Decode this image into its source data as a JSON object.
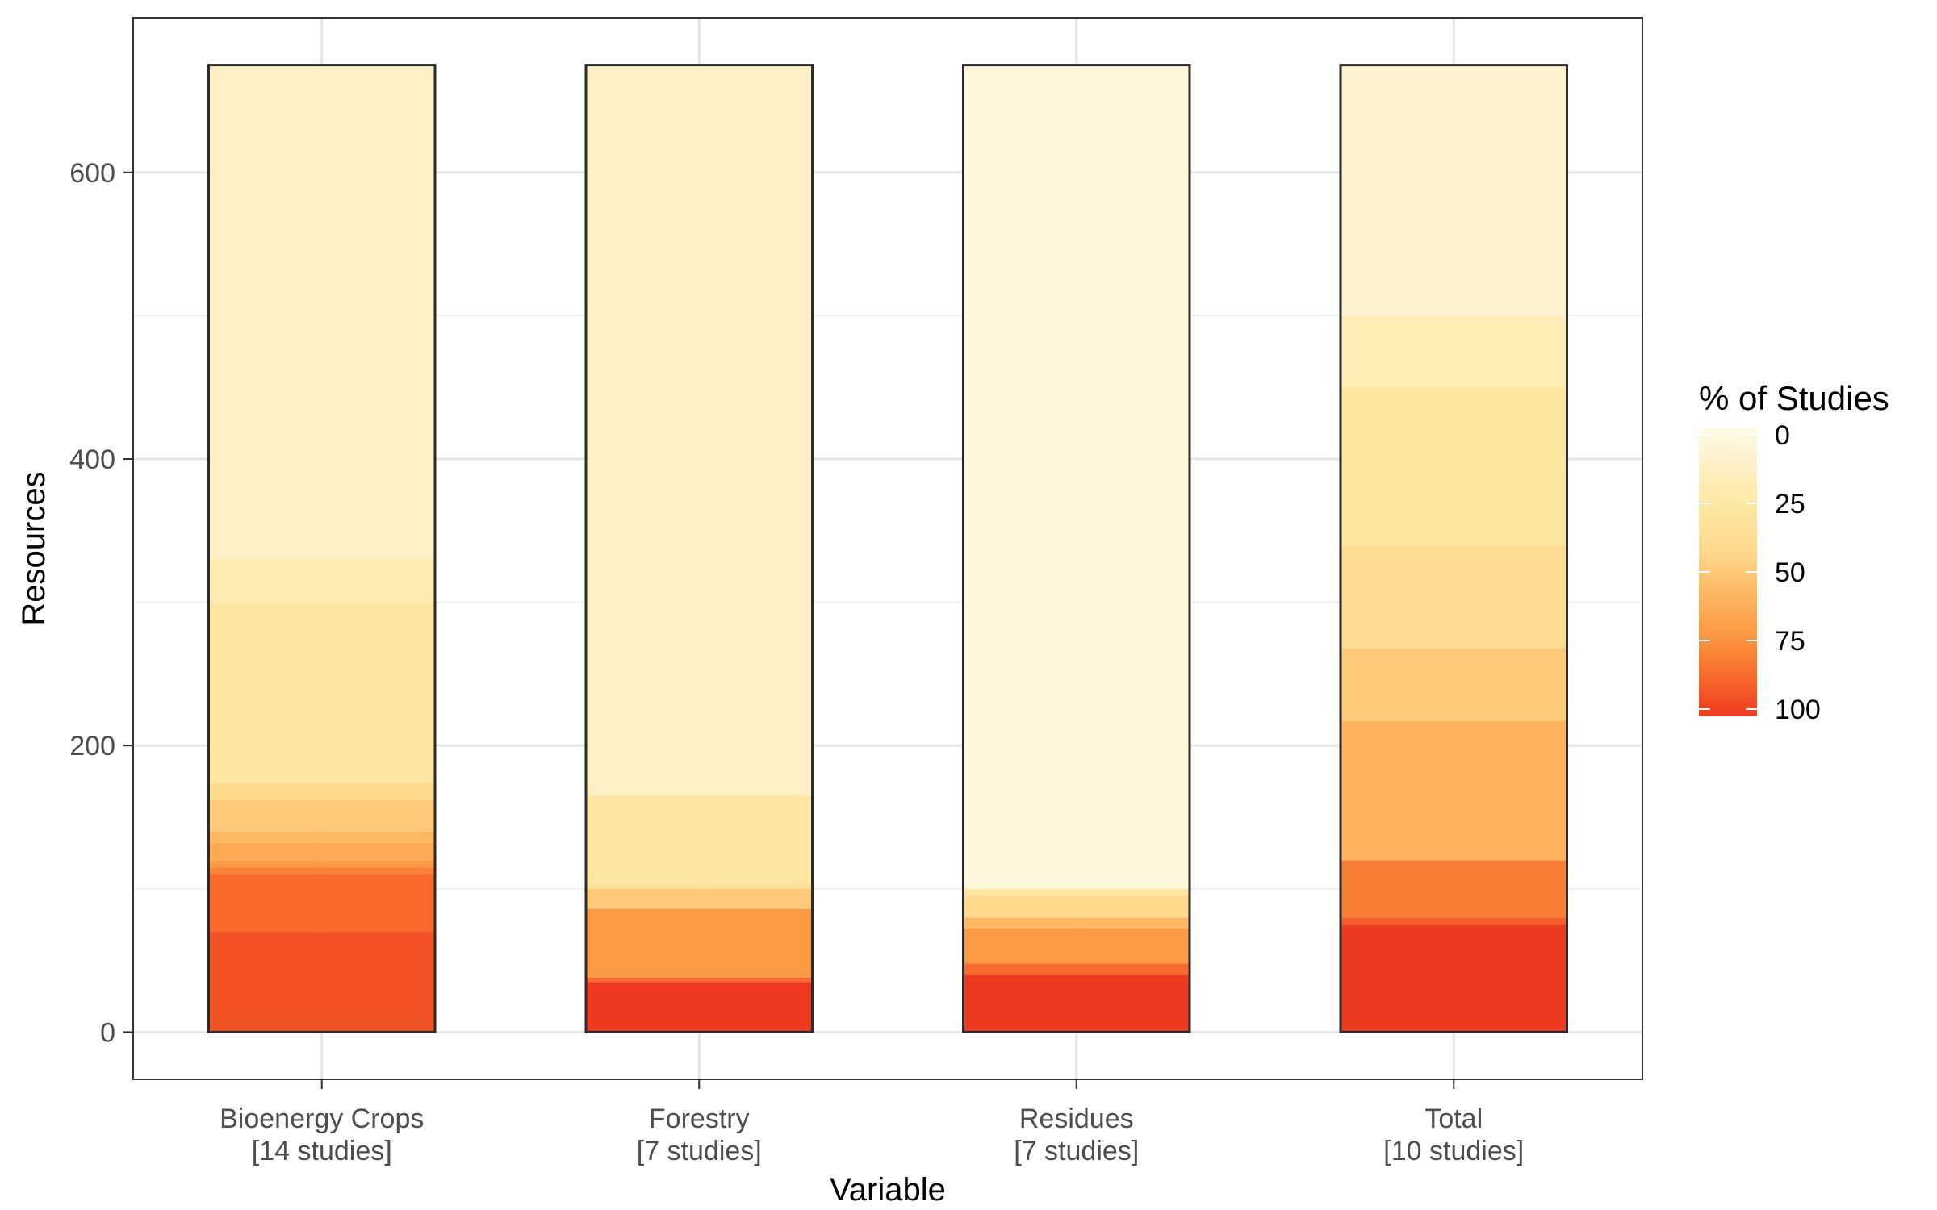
{
  "chart_data": {
    "type": "bar",
    "subtype": "stacked-heat",
    "xlabel": "Variable",
    "ylabel": "Resources",
    "ylim": [
      -33,
      708
    ],
    "yticks": [
      0,
      200,
      400,
      600
    ],
    "grid": true,
    "legend": {
      "title": "% of Studies",
      "position": "right",
      "ticks": [
        0,
        25,
        50,
        75,
        100
      ],
      "scale": [
        "#FFFBE8",
        "#FEF0C4",
        "#FDE79F",
        "#FED98E",
        "#FDB863",
        "#FB9A42",
        "#F86C2C",
        "#EE3A21"
      ]
    },
    "categories": [
      {
        "name": "Bioenergy Crops",
        "label": "Bioenergy Crops",
        "sub": "[14 studies]"
      },
      {
        "name": "Forestry",
        "label": "Forestry",
        "sub": "[7 studies]"
      },
      {
        "name": "Residues",
        "label": "Residues",
        "sub": "[7 studies]"
      },
      {
        "name": "Total",
        "label": "Total",
        "sub": "[10 studies]"
      }
    ],
    "bars": [
      {
        "category": "Bioenergy Crops",
        "segments": [
          {
            "from": 0,
            "to": 70,
            "pct": 93
          },
          {
            "from": 70,
            "to": 110,
            "pct": 86
          },
          {
            "from": 110,
            "to": 115,
            "pct": 79
          },
          {
            "from": 115,
            "to": 120,
            "pct": 71
          },
          {
            "from": 120,
            "to": 132,
            "pct": 64
          },
          {
            "from": 132,
            "to": 140,
            "pct": 57
          },
          {
            "from": 140,
            "to": 162,
            "pct": 50
          },
          {
            "from": 162,
            "to": 174,
            "pct": 43
          },
          {
            "from": 174,
            "to": 300,
            "pct": 28
          },
          {
            "from": 300,
            "to": 330,
            "pct": 21
          },
          {
            "from": 330,
            "to": 675,
            "pct": 14
          }
        ]
      },
      {
        "category": "Forestry",
        "segments": [
          {
            "from": 0,
            "to": 35,
            "pct": 100
          },
          {
            "from": 35,
            "to": 38,
            "pct": 86
          },
          {
            "from": 38,
            "to": 86,
            "pct": 71
          },
          {
            "from": 86,
            "to": 100,
            "pct": 50
          },
          {
            "from": 100,
            "to": 103,
            "pct": 35
          },
          {
            "from": 103,
            "to": 165,
            "pct": 28
          },
          {
            "from": 165,
            "to": 675,
            "pct": 14
          }
        ]
      },
      {
        "category": "Residues",
        "segments": [
          {
            "from": 0,
            "to": 40,
            "pct": 100
          },
          {
            "from": 40,
            "to": 48,
            "pct": 86
          },
          {
            "from": 48,
            "to": 72,
            "pct": 71
          },
          {
            "from": 72,
            "to": 80,
            "pct": 57
          },
          {
            "from": 80,
            "to": 95,
            "pct": 43
          },
          {
            "from": 95,
            "to": 100,
            "pct": 28
          },
          {
            "from": 100,
            "to": 675,
            "pct": 5
          }
        ]
      },
      {
        "category": "Total",
        "segments": [
          {
            "from": 0,
            "to": 75,
            "pct": 100
          },
          {
            "from": 75,
            "to": 80,
            "pct": 90
          },
          {
            "from": 80,
            "to": 120,
            "pct": 80
          },
          {
            "from": 120,
            "to": 217,
            "pct": 60
          },
          {
            "from": 217,
            "to": 268,
            "pct": 50
          },
          {
            "from": 268,
            "to": 340,
            "pct": 40
          },
          {
            "from": 340,
            "to": 450,
            "pct": 30
          },
          {
            "from": 450,
            "to": 500,
            "pct": 20
          },
          {
            "from": 500,
            "to": 675,
            "pct": 10
          }
        ]
      }
    ]
  }
}
